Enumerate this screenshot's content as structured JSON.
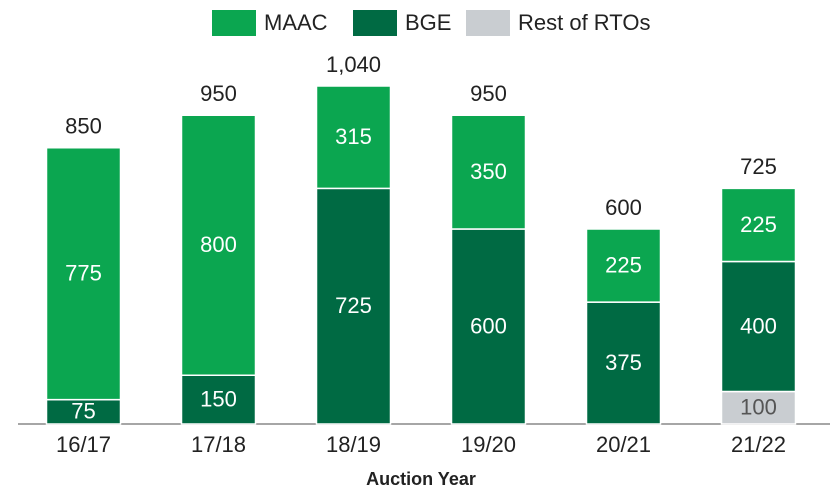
{
  "chart_data": {
    "type": "stacked_bar",
    "categories": [
      "16/17",
      "17/18",
      "18/19",
      "19/20",
      "20/21",
      "21/22"
    ],
    "series": [
      {
        "name": "Rest of RTOs",
        "color": "#c9cdd1",
        "text_color": "#555555",
        "values": [
          null,
          null,
          null,
          null,
          null,
          100
        ]
      },
      {
        "name": "BGE",
        "color": "#006a43",
        "text_color": "#ffffff",
        "values": [
          75,
          150,
          725,
          600,
          375,
          400
        ]
      },
      {
        "name": "MAAC",
        "color": "#0ba650",
        "text_color": "#ffffff",
        "values": [
          775,
          800,
          315,
          350,
          225,
          225
        ]
      }
    ],
    "legend_order": [
      2,
      1,
      0
    ],
    "totals": [
      850,
      950,
      1040,
      950,
      600,
      725
    ],
    "totals_labels": [
      "850",
      "950",
      "1,040",
      "950",
      "600",
      "725"
    ],
    "x_label": "Auction Year",
    "ylim": [
      0,
      1200
    ]
  }
}
